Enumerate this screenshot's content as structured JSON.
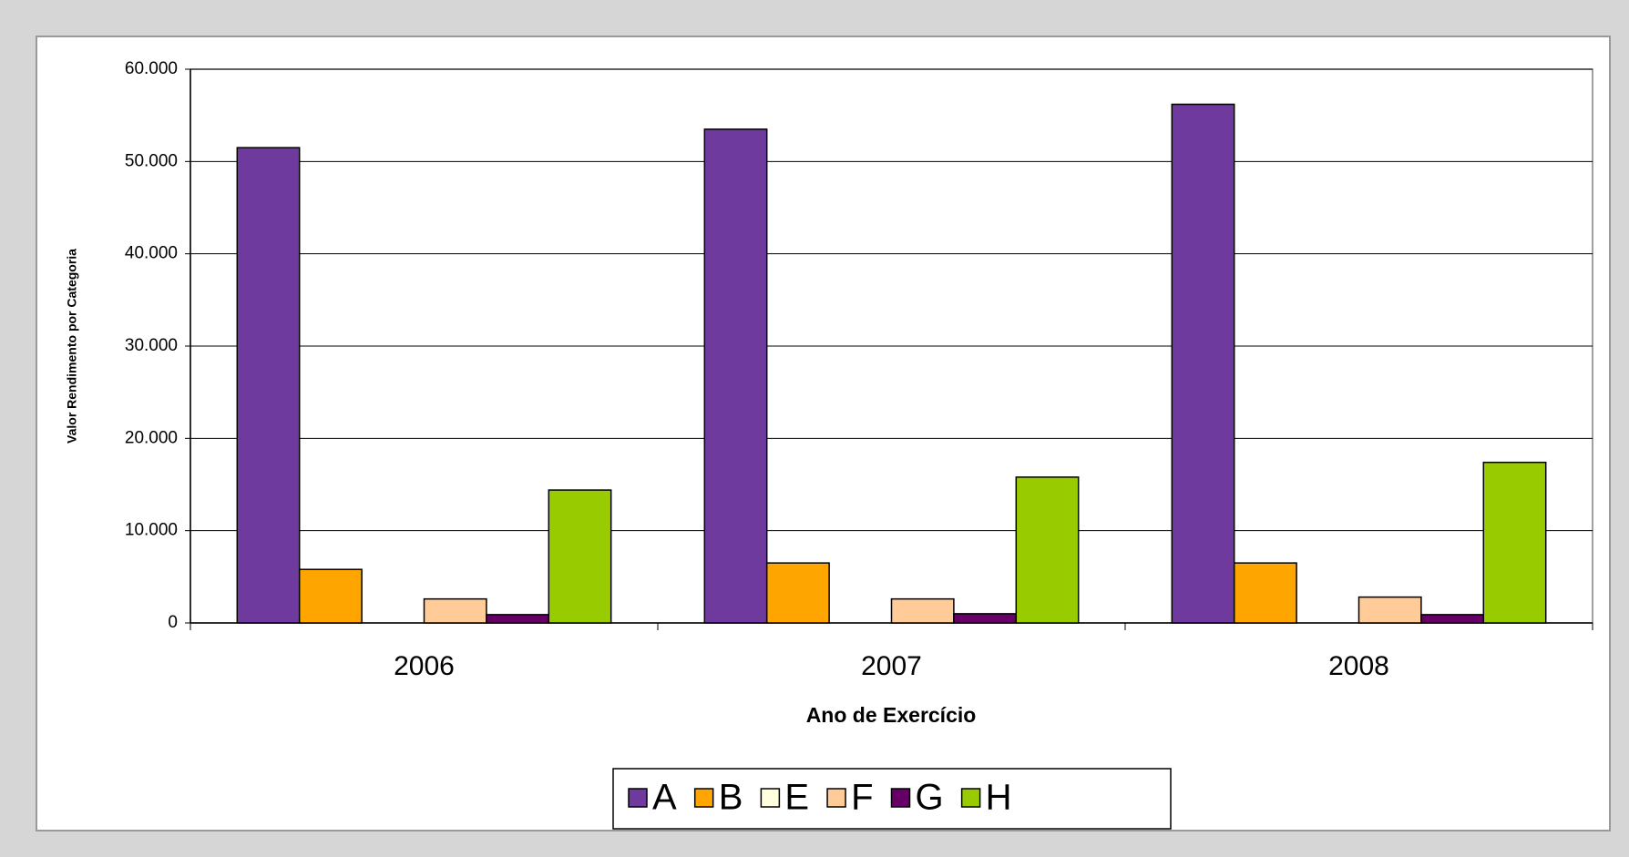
{
  "chart_data": {
    "type": "bar",
    "y_axis_label": "Valor Rendimento por Categoria",
    "x_axis_label": "Ano de Exercício",
    "categories": [
      "2006",
      "2007",
      "2008"
    ],
    "series": [
      {
        "name": "A",
        "color": "#6f3a9e",
        "values": [
          51500,
          53500,
          56200
        ]
      },
      {
        "name": "B",
        "color": "#ffa500",
        "values": [
          5800,
          6500,
          6500
        ]
      },
      {
        "name": "E",
        "color": "#ffffe0",
        "values": [
          0,
          0,
          0
        ]
      },
      {
        "name": "F",
        "color": "#ffcc99",
        "values": [
          2600,
          2600,
          2800
        ]
      },
      {
        "name": "G",
        "color": "#660066",
        "values": [
          900,
          1000,
          900
        ]
      },
      {
        "name": "H",
        "color": "#99cc00",
        "values": [
          14400,
          15800,
          17400
        ]
      }
    ],
    "ylim": [
      0,
      60000
    ],
    "yticks": [
      0,
      {
        "value": 10000,
        "label": "10.000"
      },
      {
        "value": 20000,
        "label": "20.000"
      },
      {
        "value": 30000,
        "label": "30.000"
      },
      {
        "value": 40000,
        "label": "40.000"
      },
      {
        "value": 50000,
        "label": "50.000"
      },
      {
        "value": 60000,
        "label": "60.000"
      }
    ],
    "grid": true,
    "legend": "bottom"
  }
}
